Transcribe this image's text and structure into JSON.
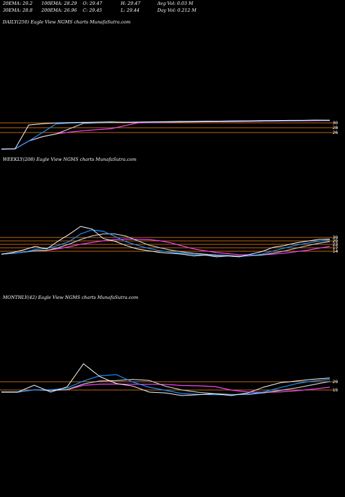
{
  "stats": {
    "ema20": "20EMA: 29.2",
    "ema100": "100EMA: 28.29",
    "open": "O: 29.47",
    "high": "H: 29.47",
    "avg_vol": "Avg Vol: 0.03  M",
    "ema30": "30EMA: 28.8",
    "ema200": "200EMA: 26.96",
    "close": "C: 29.45",
    "low": "L: 29.44",
    "day_vol": "Day Vol: 0.212  M"
  },
  "colors": {
    "background": "#000000",
    "price": "#ffffff",
    "ema_short": "#1e90ff",
    "ema_long": "#ff44ff",
    "level": "#ff8c1a",
    "ema_mid": "#c8c8c8"
  },
  "chart_data": [
    {
      "type": "line",
      "title": "DAILY(250) Eagle   View  NGMS charts MunafaSutra.com",
      "y_ticks": [
        "30",
        "28",
        "26"
      ],
      "series": [
        {
          "values": [
            18.2,
            18.3,
            27.6,
            28.1,
            28.4,
            28.5,
            28.6,
            28.7,
            28.8,
            28.6,
            28.7,
            28.8,
            28.9,
            29.0,
            29.0,
            29.1,
            29.1,
            29.2,
            29.2,
            29.3,
            29.3,
            29.4,
            29.4,
            29.5,
            29.45
          ]
        }
      ]
    },
    {
      "type": "line",
      "title": "WEEKLY(208) Eagle   View  NGMS charts MunafaSutra.com",
      "y_ticks": [
        "39",
        "29",
        "23",
        "17",
        "14"
      ],
      "series": [
        {
          "values": [
            12,
            14,
            17,
            21,
            18,
            27,
            35,
            44,
            41,
            30,
            27,
            22,
            18,
            16,
            14,
            13,
            12,
            10,
            11,
            9,
            10,
            9,
            12,
            15,
            20,
            22,
            25,
            27,
            29,
            29.45
          ]
        }
      ]
    },
    {
      "type": "line",
      "title": "MONTHLY(42) Eagle   View  NGMS charts MunafaSutra.com",
      "y_ticks": [
        "29",
        "15"
      ],
      "series": [
        {
          "values": [
            13,
            13,
            21,
            13,
            19,
            46,
            31,
            23,
            20,
            13,
            12,
            9,
            10,
            11,
            9,
            12,
            19,
            24,
            26,
            28,
            29.45
          ]
        }
      ]
    }
  ]
}
